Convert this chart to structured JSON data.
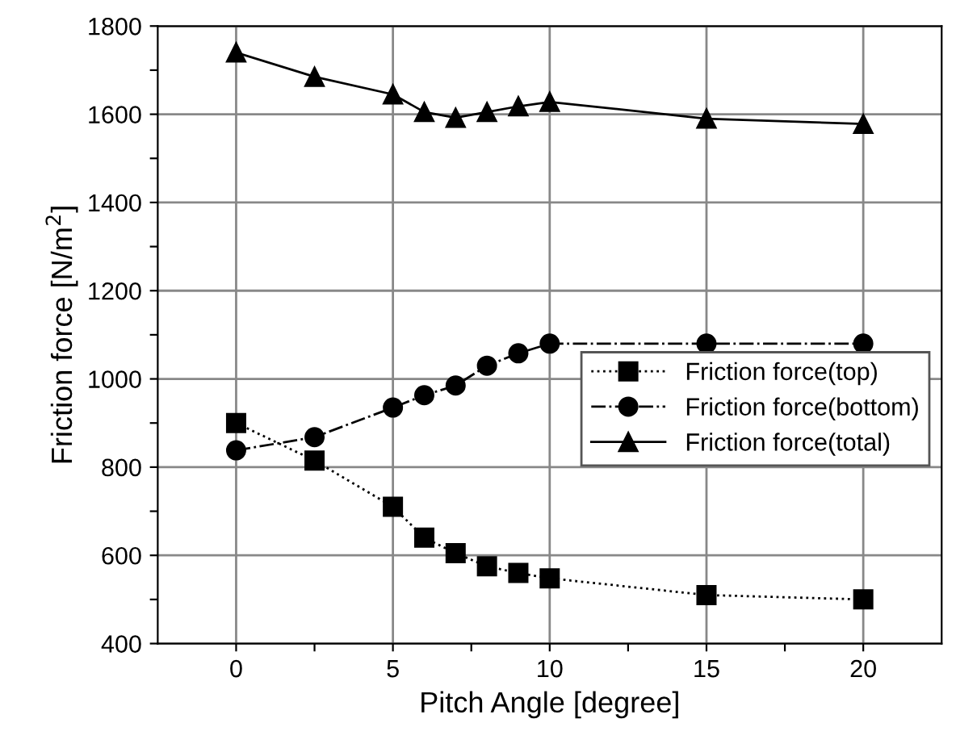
{
  "chart_data": {
    "type": "line",
    "xlabel": "Pitch Angle [degree]",
    "ylabel": "Friction force [N/m$^{2}$]",
    "x": [
      0,
      2.5,
      5,
      6,
      7,
      8,
      9,
      10,
      15,
      20
    ],
    "series": [
      {
        "name": "Friction force(top)",
        "color": "#000000",
        "marker": "square",
        "line_style": "dotted",
        "values": [
          900,
          815,
          710,
          640,
          605,
          575,
          560,
          548,
          510,
          500
        ]
      },
      {
        "name": "Friction force(bottom)",
        "color": "#000000",
        "marker": "circle",
        "line_style": "dashdot",
        "values": [
          838,
          868,
          935,
          963,
          985,
          1030,
          1058,
          1080,
          1080,
          1080
        ]
      },
      {
        "name": "Friction force(total)",
        "color": "#000000",
        "marker": "triangle",
        "line_style": "solid",
        "values": [
          1740,
          1685,
          1645,
          1605,
          1592,
          1605,
          1618,
          1628,
          1590,
          1578
        ]
      }
    ],
    "xlim": [
      -2.5,
      22.5
    ],
    "ylim": [
      400,
      1800
    ],
    "xticks": [
      0,
      {
        "value": 2.5,
        "label": null
      },
      5,
      {
        "value": 7.5,
        "label": null
      },
      10,
      {
        "value": 12.5,
        "label": null
      },
      15,
      {
        "value": 17.5,
        "label": null
      },
      20
    ],
    "yticks": [
      400,
      {
        "value": 500,
        "label": null
      },
      600,
      {
        "value": 700,
        "label": null
      },
      800,
      {
        "value": 900,
        "label": null
      },
      1000,
      {
        "value": 1100,
        "label": null
      },
      1200,
      {
        "value": 1300,
        "label": null
      },
      1400,
      {
        "value": 1500,
        "label": null
      },
      1600,
      {
        "value": 1700,
        "label": null
      },
      1800
    ],
    "grid": true,
    "legend": "right"
  }
}
